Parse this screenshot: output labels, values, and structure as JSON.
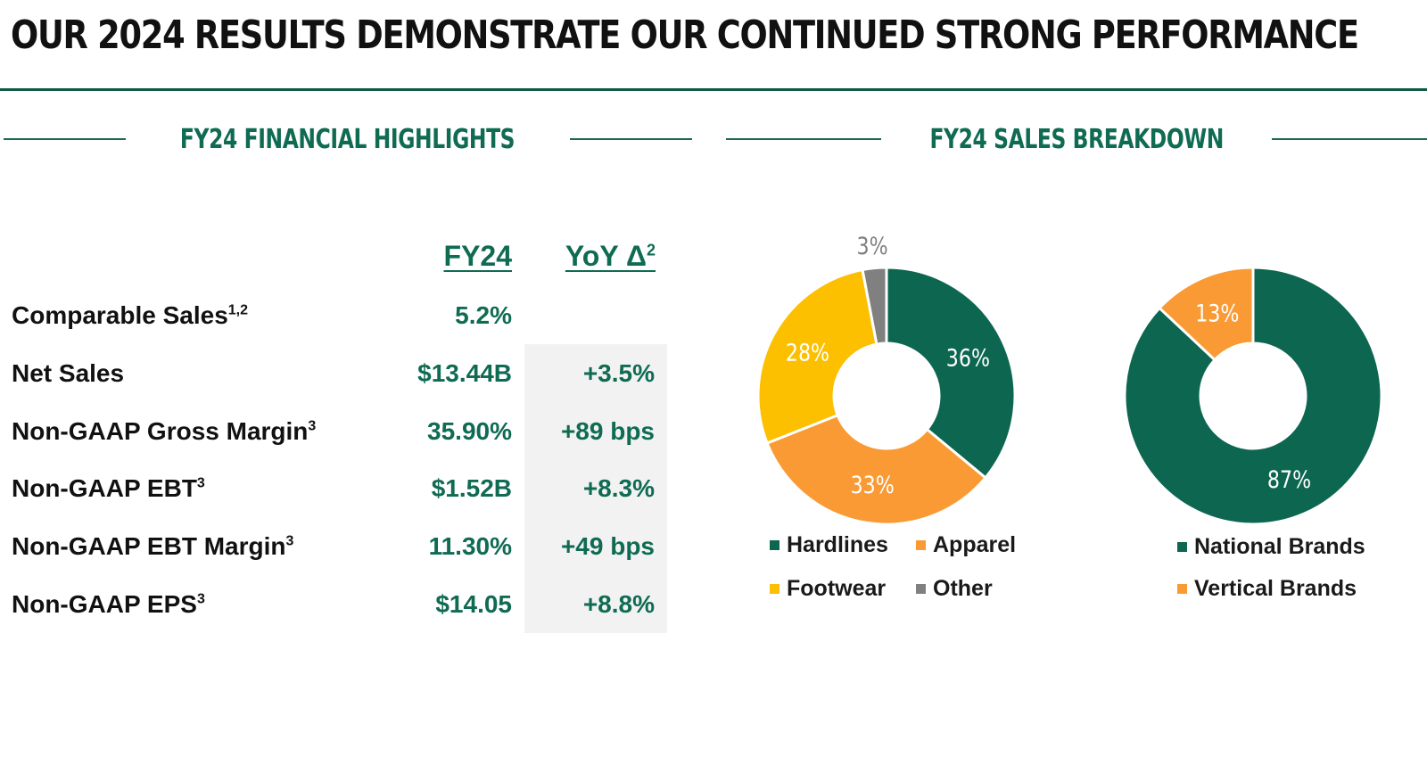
{
  "title": "OUR 2024 RESULTS DEMONSTRATE OUR CONTINUED STRONG PERFORMANCE",
  "sections": {
    "highlights": "FY24 FINANCIAL HIGHLIGHTS",
    "breakdown": "FY24 SALES BREAKDOWN"
  },
  "table": {
    "col_fy24": "FY24",
    "col_yoy": "YoY Δ",
    "col_yoy_sup": "2",
    "rows": [
      {
        "label": "Comparable Sales",
        "sup": "1,2",
        "fy24": "5.2%",
        "yoy": ""
      },
      {
        "label": "Net Sales",
        "sup": "",
        "fy24": "$13.44B",
        "yoy": "+3.5%"
      },
      {
        "label": "Non-GAAP Gross Margin",
        "sup": "3",
        "fy24": "35.90%",
        "yoy": "+89 bps"
      },
      {
        "label": "Non-GAAP EBT",
        "sup": "3",
        "fy24": "$1.52B",
        "yoy": "+8.3%"
      },
      {
        "label": "Non-GAAP EBT Margin",
        "sup": "3",
        "fy24": "11.30%",
        "yoy": "+49 bps"
      },
      {
        "label": "Non-GAAP EPS",
        "sup": "3",
        "fy24": "$14.05",
        "yoy": "+8.8%"
      }
    ]
  },
  "chart_data": [
    {
      "type": "pie",
      "donut": true,
      "legend_position": "bottom",
      "categories": [
        "Hardlines",
        "Apparel",
        "Footwear",
        "Other"
      ],
      "values": [
        36,
        33,
        28,
        3
      ],
      "labels": [
        "36%",
        "33%",
        "28%",
        "3%"
      ],
      "colors": [
        "#0d6650",
        "#fa9a35",
        "#fcc000",
        "#808080"
      ],
      "label_colors": [
        "#ffffff",
        "#ffffff",
        "#ffffff",
        "#7f7f7f"
      ]
    },
    {
      "type": "pie",
      "donut": true,
      "legend_position": "bottom",
      "categories": [
        "National Brands",
        "Vertical Brands"
      ],
      "values": [
        87,
        13
      ],
      "labels": [
        "87%",
        "13%"
      ],
      "colors": [
        "#0d6650",
        "#fa9a35"
      ],
      "label_colors": [
        "#ffffff",
        "#ffffff"
      ]
    }
  ]
}
